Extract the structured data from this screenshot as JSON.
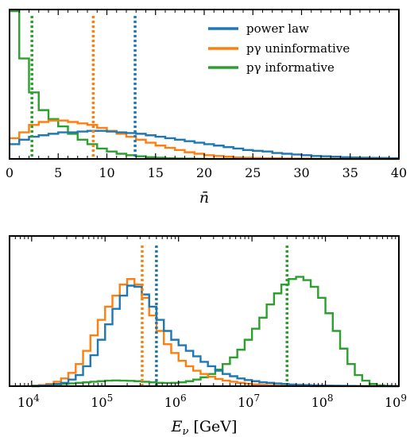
{
  "colors": {
    "power_law": "#1f77b4",
    "pg_uninformative": "#ff7f0e",
    "pg_informative": "#2ca02c"
  },
  "chart_data": [
    {
      "type": "area",
      "xlabel": "n̄",
      "ylabel": "",
      "xlim": [
        0,
        40
      ],
      "xticks": [
        "0",
        "5",
        "10",
        "15",
        "20",
        "25",
        "30",
        "35",
        "40"
      ],
      "legend_position": "top-right",
      "grid": false,
      "bin_width": 1,
      "series": [
        {
          "name": "power law",
          "color_key": "power_law",
          "bin_starts": [
            0,
            1,
            2,
            3,
            4,
            5,
            6,
            7,
            8,
            9,
            10,
            11,
            12,
            13,
            14,
            15,
            16,
            17,
            18,
            19,
            20,
            21,
            22,
            23,
            24,
            25,
            26,
            27,
            28,
            29,
            30,
            31,
            32,
            33,
            34,
            35,
            36,
            37,
            38,
            39
          ],
          "values": [
            0.1,
            0.13,
            0.15,
            0.16,
            0.17,
            0.18,
            0.18,
            0.185,
            0.19,
            0.19,
            0.185,
            0.18,
            0.175,
            0.17,
            0.16,
            0.15,
            0.14,
            0.13,
            0.12,
            0.11,
            0.1,
            0.09,
            0.08,
            0.07,
            0.06,
            0.055,
            0.05,
            0.04,
            0.035,
            0.03,
            0.025,
            0.02,
            0.018,
            0.015,
            0.012,
            0.01,
            0.008,
            0.007,
            0.006,
            0.005
          ],
          "mean": 12.9
        },
        {
          "name": "pγ uninformative",
          "color_key": "pg_uninformative",
          "bin_starts": [
            0,
            1,
            2,
            3,
            4,
            5,
            6,
            7,
            8,
            9,
            10,
            11,
            12,
            13,
            14,
            15,
            16,
            17,
            18,
            19,
            20,
            21,
            22,
            23,
            24,
            25,
            26,
            27,
            28,
            29,
            30,
            31,
            32,
            33,
            34,
            35,
            36,
            37,
            38,
            39
          ],
          "values": [
            0.14,
            0.18,
            0.23,
            0.25,
            0.26,
            0.26,
            0.25,
            0.24,
            0.23,
            0.21,
            0.19,
            0.17,
            0.15,
            0.13,
            0.11,
            0.09,
            0.075,
            0.06,
            0.045,
            0.035,
            0.025,
            0.02,
            0.015,
            0.01,
            0.008,
            0.006,
            0.005,
            0.004,
            0.003,
            0.002,
            0.002,
            0.001,
            0.001,
            0.001,
            0.0,
            0.0,
            0.0,
            0.0,
            0.0,
            0.0
          ],
          "mean": 8.6
        },
        {
          "name": "pγ informative",
          "color_key": "pg_informative",
          "bin_starts": [
            0,
            1,
            2,
            3,
            4,
            5,
            6,
            7,
            8,
            9,
            10,
            11,
            12,
            13,
            14,
            15,
            16,
            17,
            18,
            19,
            20,
            21,
            22,
            23,
            24,
            25,
            26,
            27,
            28,
            29,
            30,
            31,
            32,
            33,
            34,
            35,
            36,
            37,
            38,
            39
          ],
          "values": [
            1.0,
            0.68,
            0.45,
            0.33,
            0.27,
            0.22,
            0.17,
            0.13,
            0.1,
            0.07,
            0.05,
            0.035,
            0.025,
            0.018,
            0.012,
            0.008,
            0.005,
            0.003,
            0.002,
            0.001,
            0,
            0,
            0,
            0,
            0,
            0,
            0,
            0,
            0,
            0,
            0,
            0,
            0,
            0,
            0,
            0,
            0,
            0,
            0,
            0
          ],
          "mean": 2.3
        }
      ]
    },
    {
      "type": "area",
      "xlabel": "E_ν [GeV]",
      "ylabel": "",
      "xscale": "log",
      "xlim": [
        5000.0,
        1000000000.0
      ],
      "xticks": [
        {
          "base": "10",
          "exp": "4",
          "value": 10000.0
        },
        {
          "base": "10",
          "exp": "5",
          "value": 100000.0
        },
        {
          "base": "10",
          "exp": "6",
          "value": 1000000.0
        },
        {
          "base": "10",
          "exp": "7",
          "value": 10000000.0
        },
        {
          "base": "10",
          "exp": "8",
          "value": 100000000.0
        },
        {
          "base": "10",
          "exp": "9",
          "value": 1000000000.0
        }
      ],
      "grid": false,
      "bins_per_decade": 10,
      "series": [
        {
          "name": "power law",
          "color_key": "power_law",
          "log10_bin_starts": [
            4.0,
            4.1,
            4.2,
            4.3,
            4.4,
            4.5,
            4.6,
            4.7,
            4.8,
            4.9,
            5.0,
            5.1,
            5.2,
            5.3,
            5.4,
            5.5,
            5.6,
            5.7,
            5.8,
            5.9,
            6.0,
            6.1,
            6.2,
            6.3,
            6.4,
            6.5,
            6.6,
            6.7,
            6.8,
            6.9,
            7.0,
            7.1,
            7.2,
            7.3,
            7.4,
            7.5,
            7.6,
            7.7,
            7.8,
            7.9,
            8.0,
            8.1,
            8.2,
            8.3,
            8.4,
            8.5,
            8.6,
            8.7,
            8.8,
            8.9
          ],
          "values": [
            0.0,
            0.005,
            0.01,
            0.02,
            0.03,
            0.06,
            0.1,
            0.18,
            0.28,
            0.42,
            0.56,
            0.7,
            0.82,
            0.91,
            0.9,
            0.83,
            0.72,
            0.6,
            0.5,
            0.42,
            0.37,
            0.32,
            0.27,
            0.22,
            0.18,
            0.14,
            0.11,
            0.09,
            0.07,
            0.055,
            0.045,
            0.035,
            0.03,
            0.025,
            0.02,
            0.015,
            0.012,
            0.01,
            0.008,
            0.006,
            0.005,
            0.004,
            0.003,
            0.002,
            0.001,
            0,
            0,
            0,
            0,
            0
          ],
          "mean": 500000.0
        },
        {
          "name": "pγ uninformative",
          "color_key": "pg_uninformative",
          "log10_bin_starts": [
            4.0,
            4.1,
            4.2,
            4.3,
            4.4,
            4.5,
            4.6,
            4.7,
            4.8,
            4.9,
            5.0,
            5.1,
            5.2,
            5.3,
            5.4,
            5.5,
            5.6,
            5.7,
            5.8,
            5.9,
            6.0,
            6.1,
            6.2,
            6.3,
            6.4,
            6.5,
            6.6,
            6.7,
            6.8,
            6.9,
            7.0,
            7.1,
            7.2,
            7.3,
            7.4,
            7.5,
            7.6,
            7.7,
            7.8,
            7.9,
            8.0,
            8.1,
            8.2,
            8.3,
            8.4,
            8.5,
            8.6,
            8.7,
            8.8,
            8.9
          ],
          "values": [
            0.0,
            0.01,
            0.02,
            0.04,
            0.07,
            0.12,
            0.2,
            0.32,
            0.46,
            0.6,
            0.72,
            0.82,
            0.92,
            0.97,
            0.92,
            0.8,
            0.64,
            0.5,
            0.38,
            0.3,
            0.23,
            0.18,
            0.14,
            0.11,
            0.085,
            0.065,
            0.05,
            0.04,
            0.03,
            0.022,
            0.016,
            0.012,
            0.009,
            0.006,
            0.004,
            0.003,
            0.002,
            0.001,
            0,
            0,
            0,
            0,
            0,
            0,
            0,
            0,
            0,
            0,
            0,
            0
          ],
          "mean": 320000.0
        },
        {
          "name": "pγ informative",
          "color_key": "pg_informative",
          "log10_bin_starts": [
            4.0,
            4.1,
            4.2,
            4.3,
            4.4,
            4.5,
            4.6,
            4.7,
            4.8,
            4.9,
            5.0,
            5.1,
            5.2,
            5.3,
            5.4,
            5.5,
            5.6,
            5.7,
            5.8,
            5.9,
            6.0,
            6.1,
            6.2,
            6.3,
            6.4,
            6.5,
            6.6,
            6.7,
            6.8,
            6.9,
            7.0,
            7.1,
            7.2,
            7.3,
            7.4,
            7.5,
            7.6,
            7.7,
            7.8,
            7.9,
            8.0,
            8.1,
            8.2,
            8.3,
            8.4,
            8.5,
            8.6,
            8.7,
            8.8,
            8.9
          ],
          "values": [
            0.005,
            0.008,
            0.01,
            0.015,
            0.02,
            0.025,
            0.03,
            0.035,
            0.04,
            0.045,
            0.05,
            0.052,
            0.05,
            0.048,
            0.045,
            0.04,
            0.035,
            0.03,
            0.028,
            0.03,
            0.035,
            0.045,
            0.06,
            0.08,
            0.11,
            0.15,
            0.2,
            0.26,
            0.33,
            0.42,
            0.52,
            0.62,
            0.74,
            0.84,
            0.92,
            0.97,
            0.99,
            0.96,
            0.9,
            0.8,
            0.66,
            0.5,
            0.34,
            0.2,
            0.1,
            0.05,
            0.02,
            0.008,
            0.003,
            0.0
          ],
          "mean": 30000000.0
        }
      ]
    }
  ]
}
